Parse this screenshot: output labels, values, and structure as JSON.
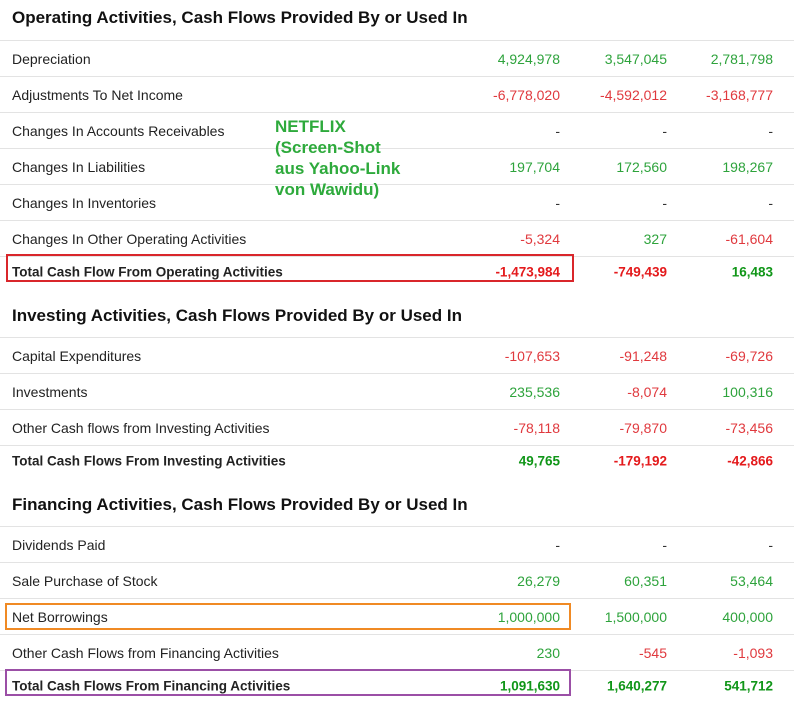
{
  "sections": [
    {
      "title": "Operating Activities, Cash Flows Provided By or Used In",
      "rows": [
        {
          "label": "Depreciation",
          "values": [
            "4,924,978",
            "3,547,045",
            "2,781,798"
          ]
        },
        {
          "label": "Adjustments To Net Income",
          "values": [
            "-6,778,020",
            "-4,592,012",
            "-3,168,777"
          ]
        },
        {
          "label": "Changes In Accounts Receivables",
          "values": [
            "-",
            "-",
            "-"
          ]
        },
        {
          "label": "Changes In Liabilities",
          "values": [
            "197,704",
            "172,560",
            "198,267"
          ]
        },
        {
          "label": "Changes In Inventories",
          "values": [
            "-",
            "-",
            "-"
          ]
        },
        {
          "label": "Changes In Other Operating Activities",
          "values": [
            "-5,324",
            "327",
            "-61,604"
          ]
        }
      ],
      "total": {
        "label": "Total Cash Flow From Operating Activities",
        "values": [
          "-1,473,984",
          "-749,439",
          "16,483"
        ]
      }
    },
    {
      "title": "Investing Activities, Cash Flows Provided By or Used In",
      "rows": [
        {
          "label": "Capital Expenditures",
          "values": [
            "-107,653",
            "-91,248",
            "-69,726"
          ]
        },
        {
          "label": "Investments",
          "values": [
            "235,536",
            "-8,074",
            "100,316"
          ]
        },
        {
          "label": "Other Cash flows from Investing Activities",
          "values": [
            "-78,118",
            "-79,870",
            "-73,456"
          ]
        }
      ],
      "total": {
        "label": "Total Cash Flows From Investing Activities",
        "values": [
          "49,765",
          "-179,192",
          "-42,866"
        ]
      }
    },
    {
      "title": "Financing Activities, Cash Flows Provided By or Used In",
      "rows": [
        {
          "label": "Dividends Paid",
          "values": [
            "-",
            "-",
            "-"
          ]
        },
        {
          "label": "Sale Purchase of Stock",
          "values": [
            "26,279",
            "60,351",
            "53,464"
          ]
        },
        {
          "label": "Net Borrowings",
          "values": [
            "1,000,000",
            "1,500,000",
            "400,000"
          ]
        },
        {
          "label": "Other Cash Flows from Financing Activities",
          "values": [
            "230",
            "-545",
            "-1,093"
          ]
        }
      ],
      "total": {
        "label": "Total Cash Flows From Financing Activities",
        "values": [
          "1,091,630",
          "1,640,277",
          "541,712"
        ]
      }
    }
  ],
  "annotation": {
    "lines": [
      "NETFLIX",
      "(Screen-Shot",
      "aus Yahoo-Link",
      "von Wawidu)"
    ],
    "color": "#2eaa3c"
  },
  "highlights": {
    "operating_total_color": "#d9262b",
    "net_borrowings_color": "#f08a24",
    "financing_total_color": "#9b4fa6"
  },
  "colors": {
    "positive": "#2ea33c",
    "negative": "#e0393e"
  }
}
